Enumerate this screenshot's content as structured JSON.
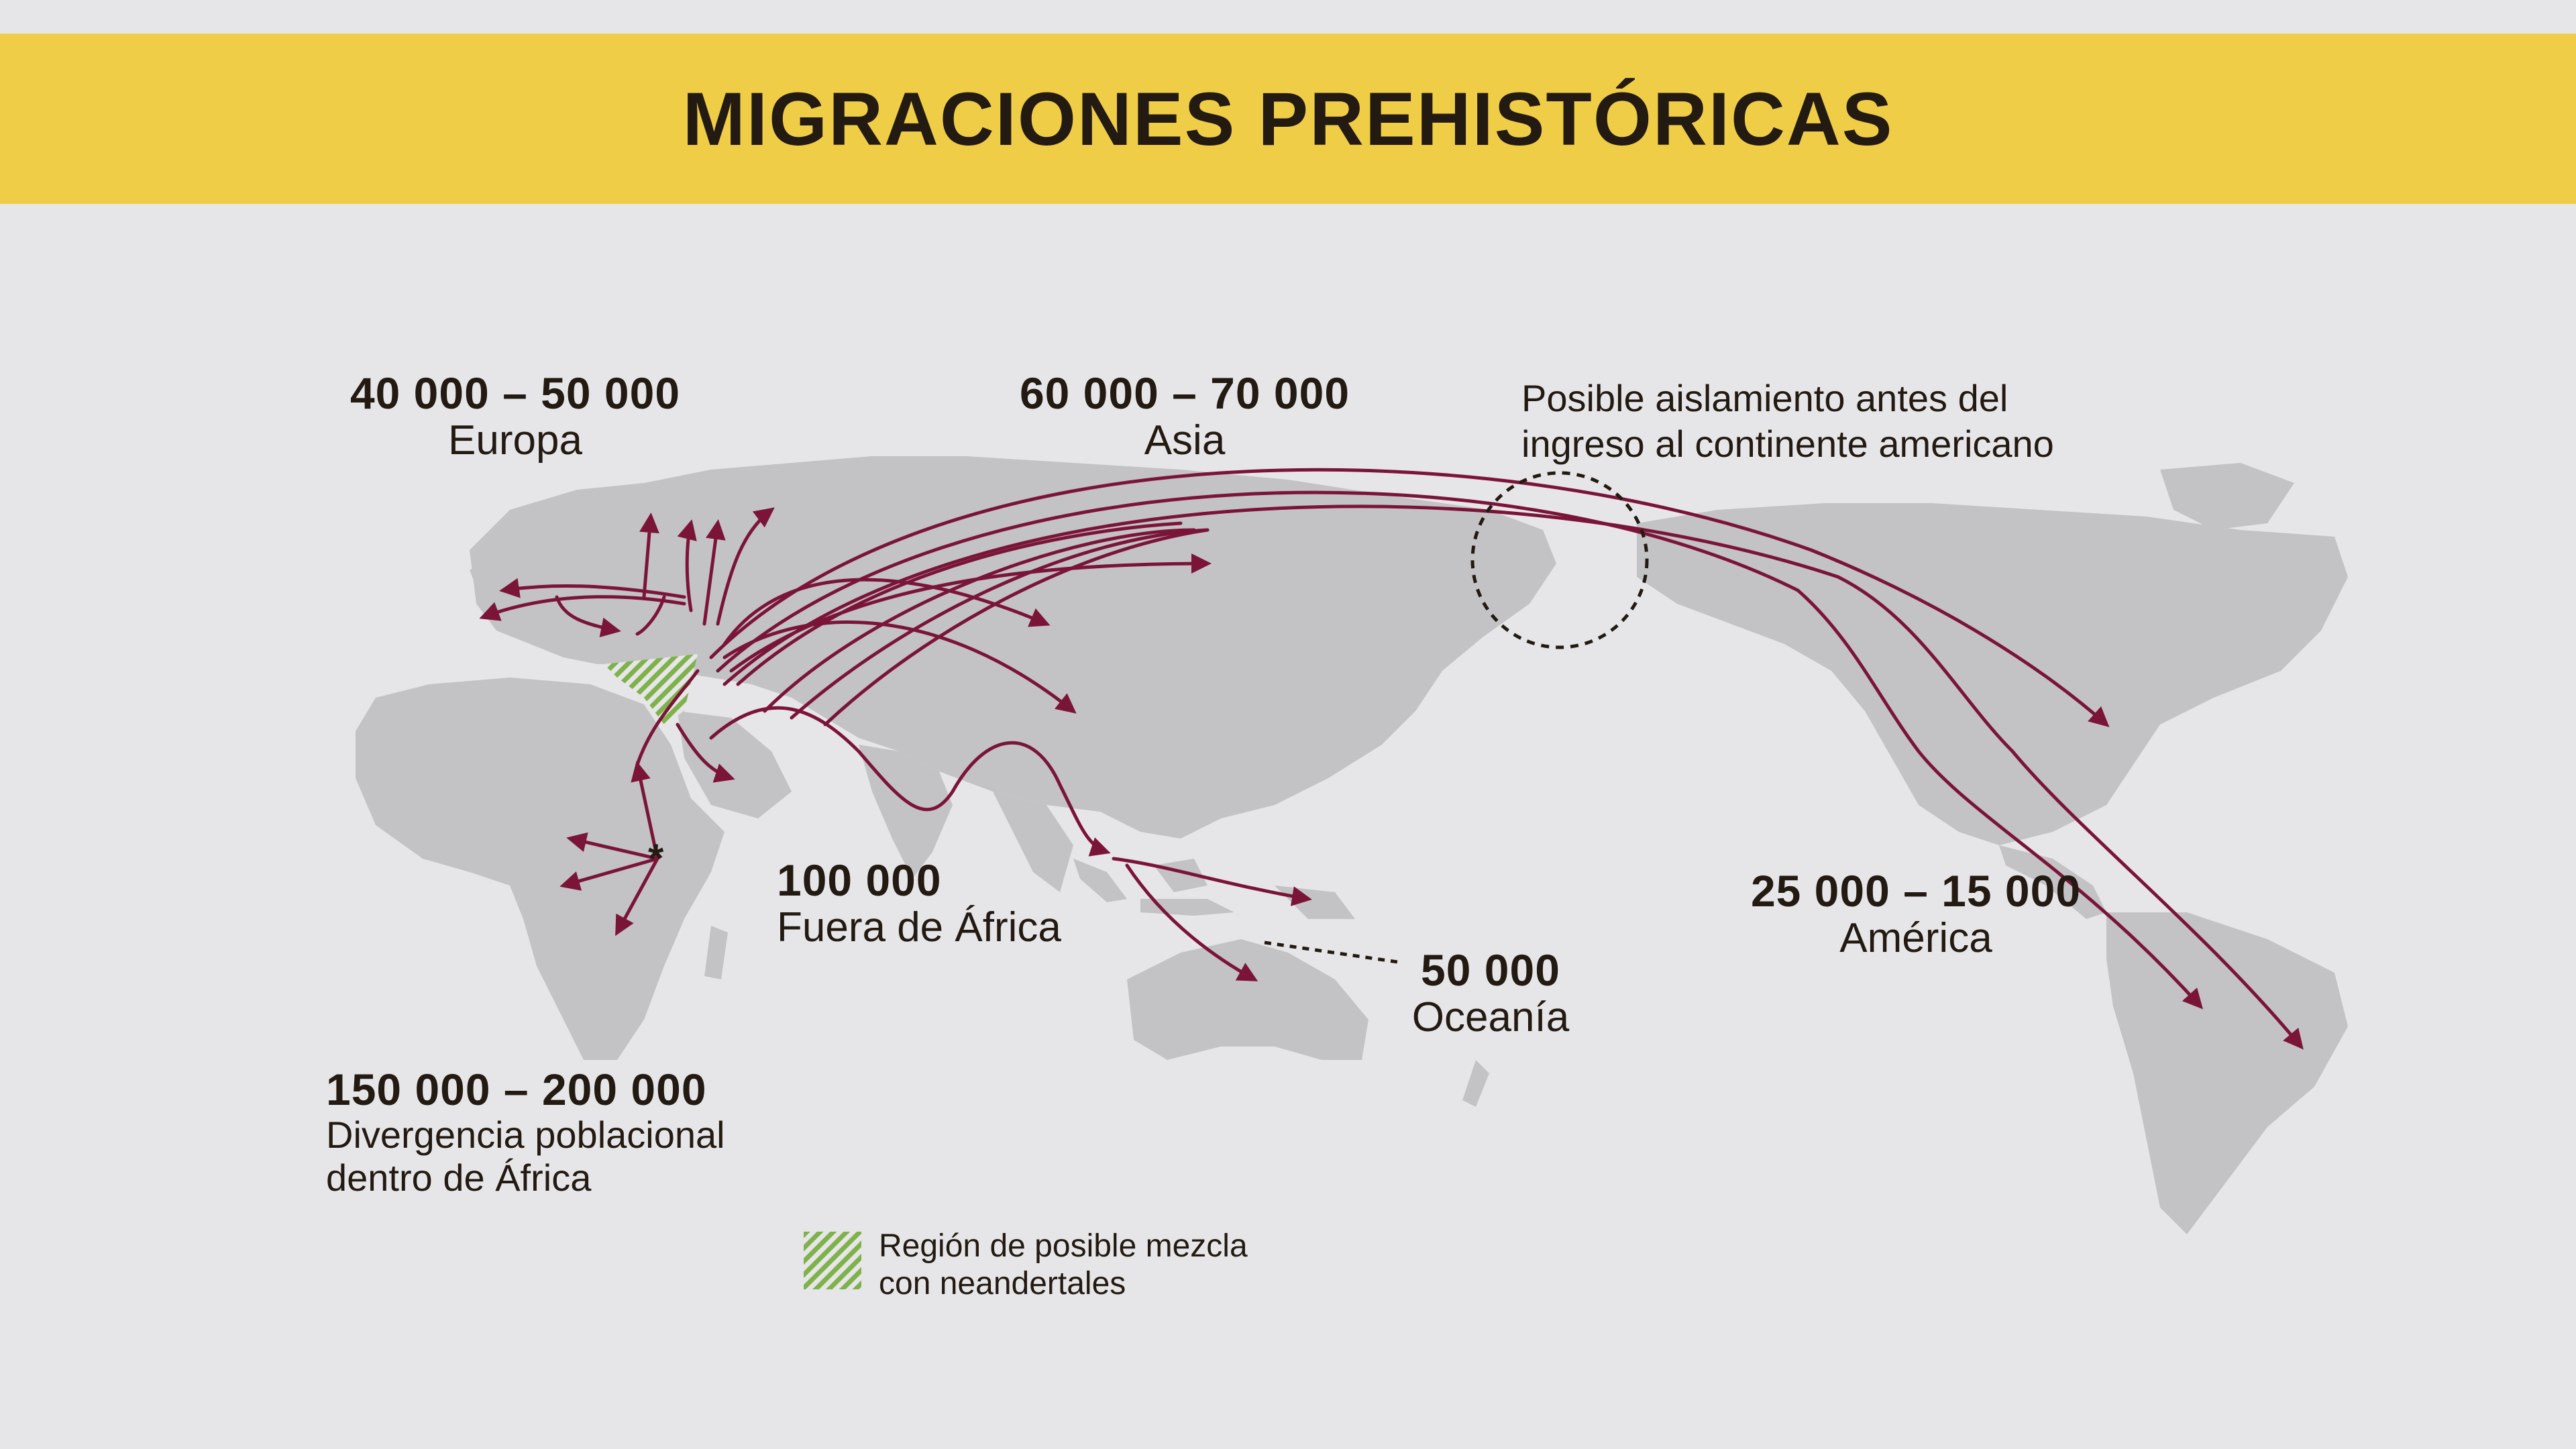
{
  "title": "MIGRACIONES PREHISTÓRICAS",
  "labels": {
    "europa": {
      "num": "40 000 – 50 000",
      "text": "Europa"
    },
    "asia": {
      "num": "60 000 – 70 000",
      "text": "Asia"
    },
    "africa_out": {
      "num": "100 000",
      "text": "Fuera de África"
    },
    "oceania": {
      "num": "50 000",
      "text": "Oceanía"
    },
    "america": {
      "num": "25 000 – 15 000",
      "text": "América"
    },
    "africa_div": {
      "num": "150 000 – 200 000",
      "line1": "Divergencia poblacional",
      "line2": "dentro de África"
    }
  },
  "isolation_note": {
    "line1": "Posible aislamiento antes del",
    "line2": "ingreso al continente americano"
  },
  "legend": {
    "line1": "Región de posible mezcla",
    "line2": "con neandertales"
  },
  "colors": {
    "background": "#e6e6e9",
    "banner": "#efcd46",
    "land": "#c3c3c6",
    "route": "#7b1538",
    "neanderthal_hatch": "#7fb24a",
    "text": "#231a12"
  }
}
